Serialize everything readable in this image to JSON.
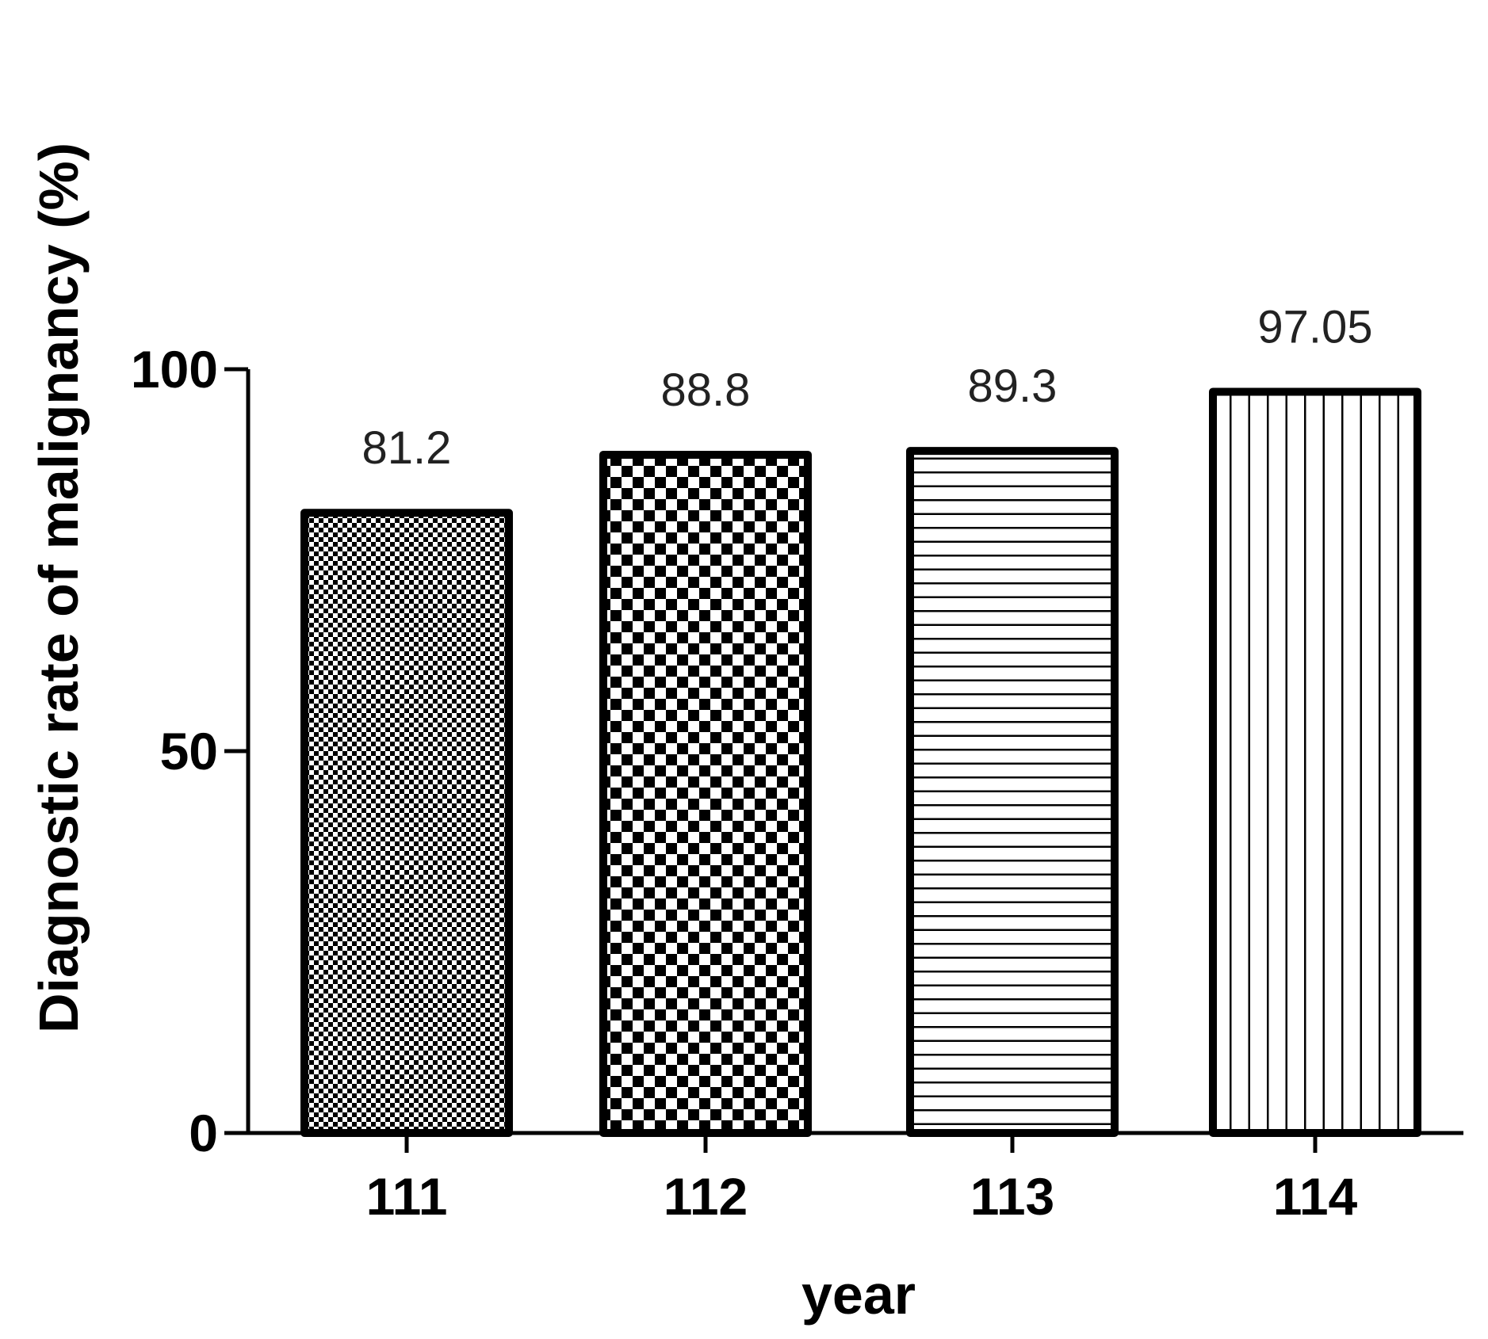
{
  "chart_data": {
    "type": "bar",
    "title": "",
    "xlabel": "year",
    "ylabel": "Diagnostic rate of malignancy (%)",
    "categories": [
      "111",
      "112",
      "113",
      "114"
    ],
    "values": [
      81.2,
      88.8,
      89.3,
      97.05
    ],
    "data_labels": [
      "81.2",
      "88.8",
      "89.3",
      "97.05"
    ],
    "ylim": [
      0,
      100
    ],
    "yticks": [
      0,
      50,
      100
    ],
    "ytick_labels": [
      "0",
      "50",
      "100"
    ],
    "grid": false,
    "legend": "none",
    "fill_patterns": [
      "fine-checker",
      "checker",
      "horizontal-lines",
      "vertical-lines"
    ],
    "colors": {
      "stroke": "#000000",
      "fill": "#ffffff",
      "label": "#222222"
    }
  }
}
